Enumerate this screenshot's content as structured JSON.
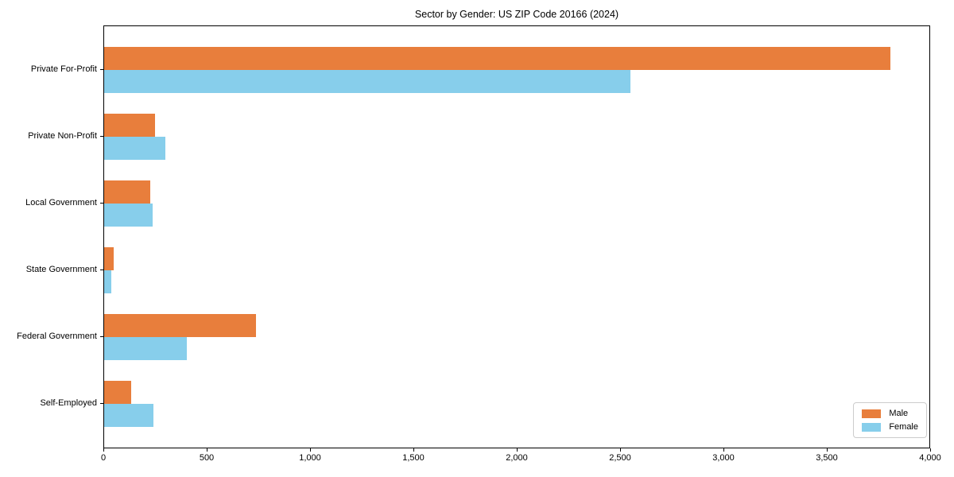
{
  "title": "Sector by Gender: US ZIP Code 20166 (2024)",
  "chart_data": {
    "type": "bar",
    "orientation": "horizontal",
    "title": "Sector by Gender: US ZIP Code 20166 (2024)",
    "categories": [
      "Private For-Profit",
      "Private Non-Profit",
      "Local Government",
      "State Government",
      "Federal Government",
      "Self-Employed"
    ],
    "series": [
      {
        "name": "Male",
        "color": "#e87e3c",
        "values": [
          3810,
          245,
          225,
          45,
          735,
          130
        ]
      },
      {
        "name": "Female",
        "color": "#87ceeb",
        "values": [
          2550,
          295,
          235,
          35,
          400,
          240
        ]
      }
    ],
    "xlabel": "",
    "ylabel": "",
    "xlim": [
      0,
      4000
    ],
    "x_ticks": [
      0,
      500,
      1000,
      1500,
      2000,
      2500,
      3000,
      3500,
      4000
    ],
    "x_tick_labels": [
      "0",
      "500",
      "1,000",
      "1,500",
      "2,000",
      "2,500",
      "3,000",
      "3,500",
      "4,000"
    ],
    "grid": false,
    "legend_position": "lower right"
  }
}
